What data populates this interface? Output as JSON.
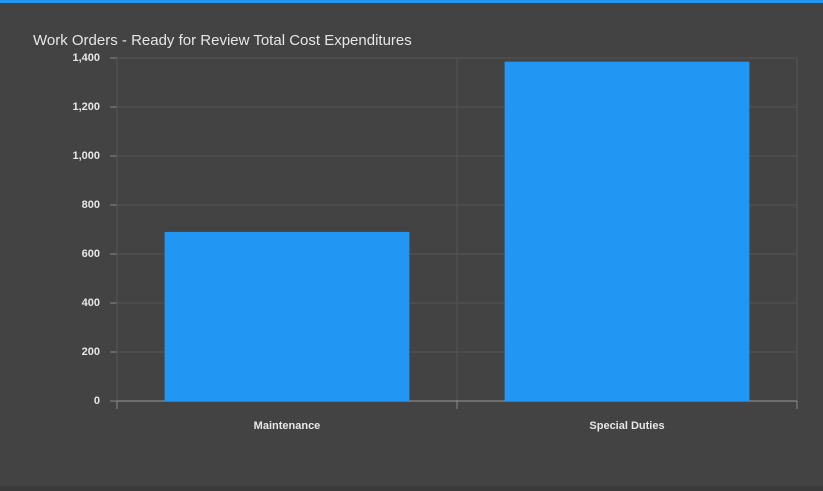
{
  "chart_data": {
    "type": "bar",
    "title": "Work Orders - Ready for Review Total Cost Expenditures",
    "categories": [
      "Maintenance",
      "Special Duties"
    ],
    "values": [
      690,
      1385
    ],
    "color": "#2196f3",
    "ylim": [
      0,
      1400
    ],
    "yticks": [
      0,
      200,
      400,
      600,
      800,
      {
        "value": 1000,
        "label": "1,000"
      },
      {
        "value": 1200,
        "label": "1,200"
      },
      {
        "value": 1400,
        "label": "1,400"
      }
    ],
    "grid": true
  }
}
